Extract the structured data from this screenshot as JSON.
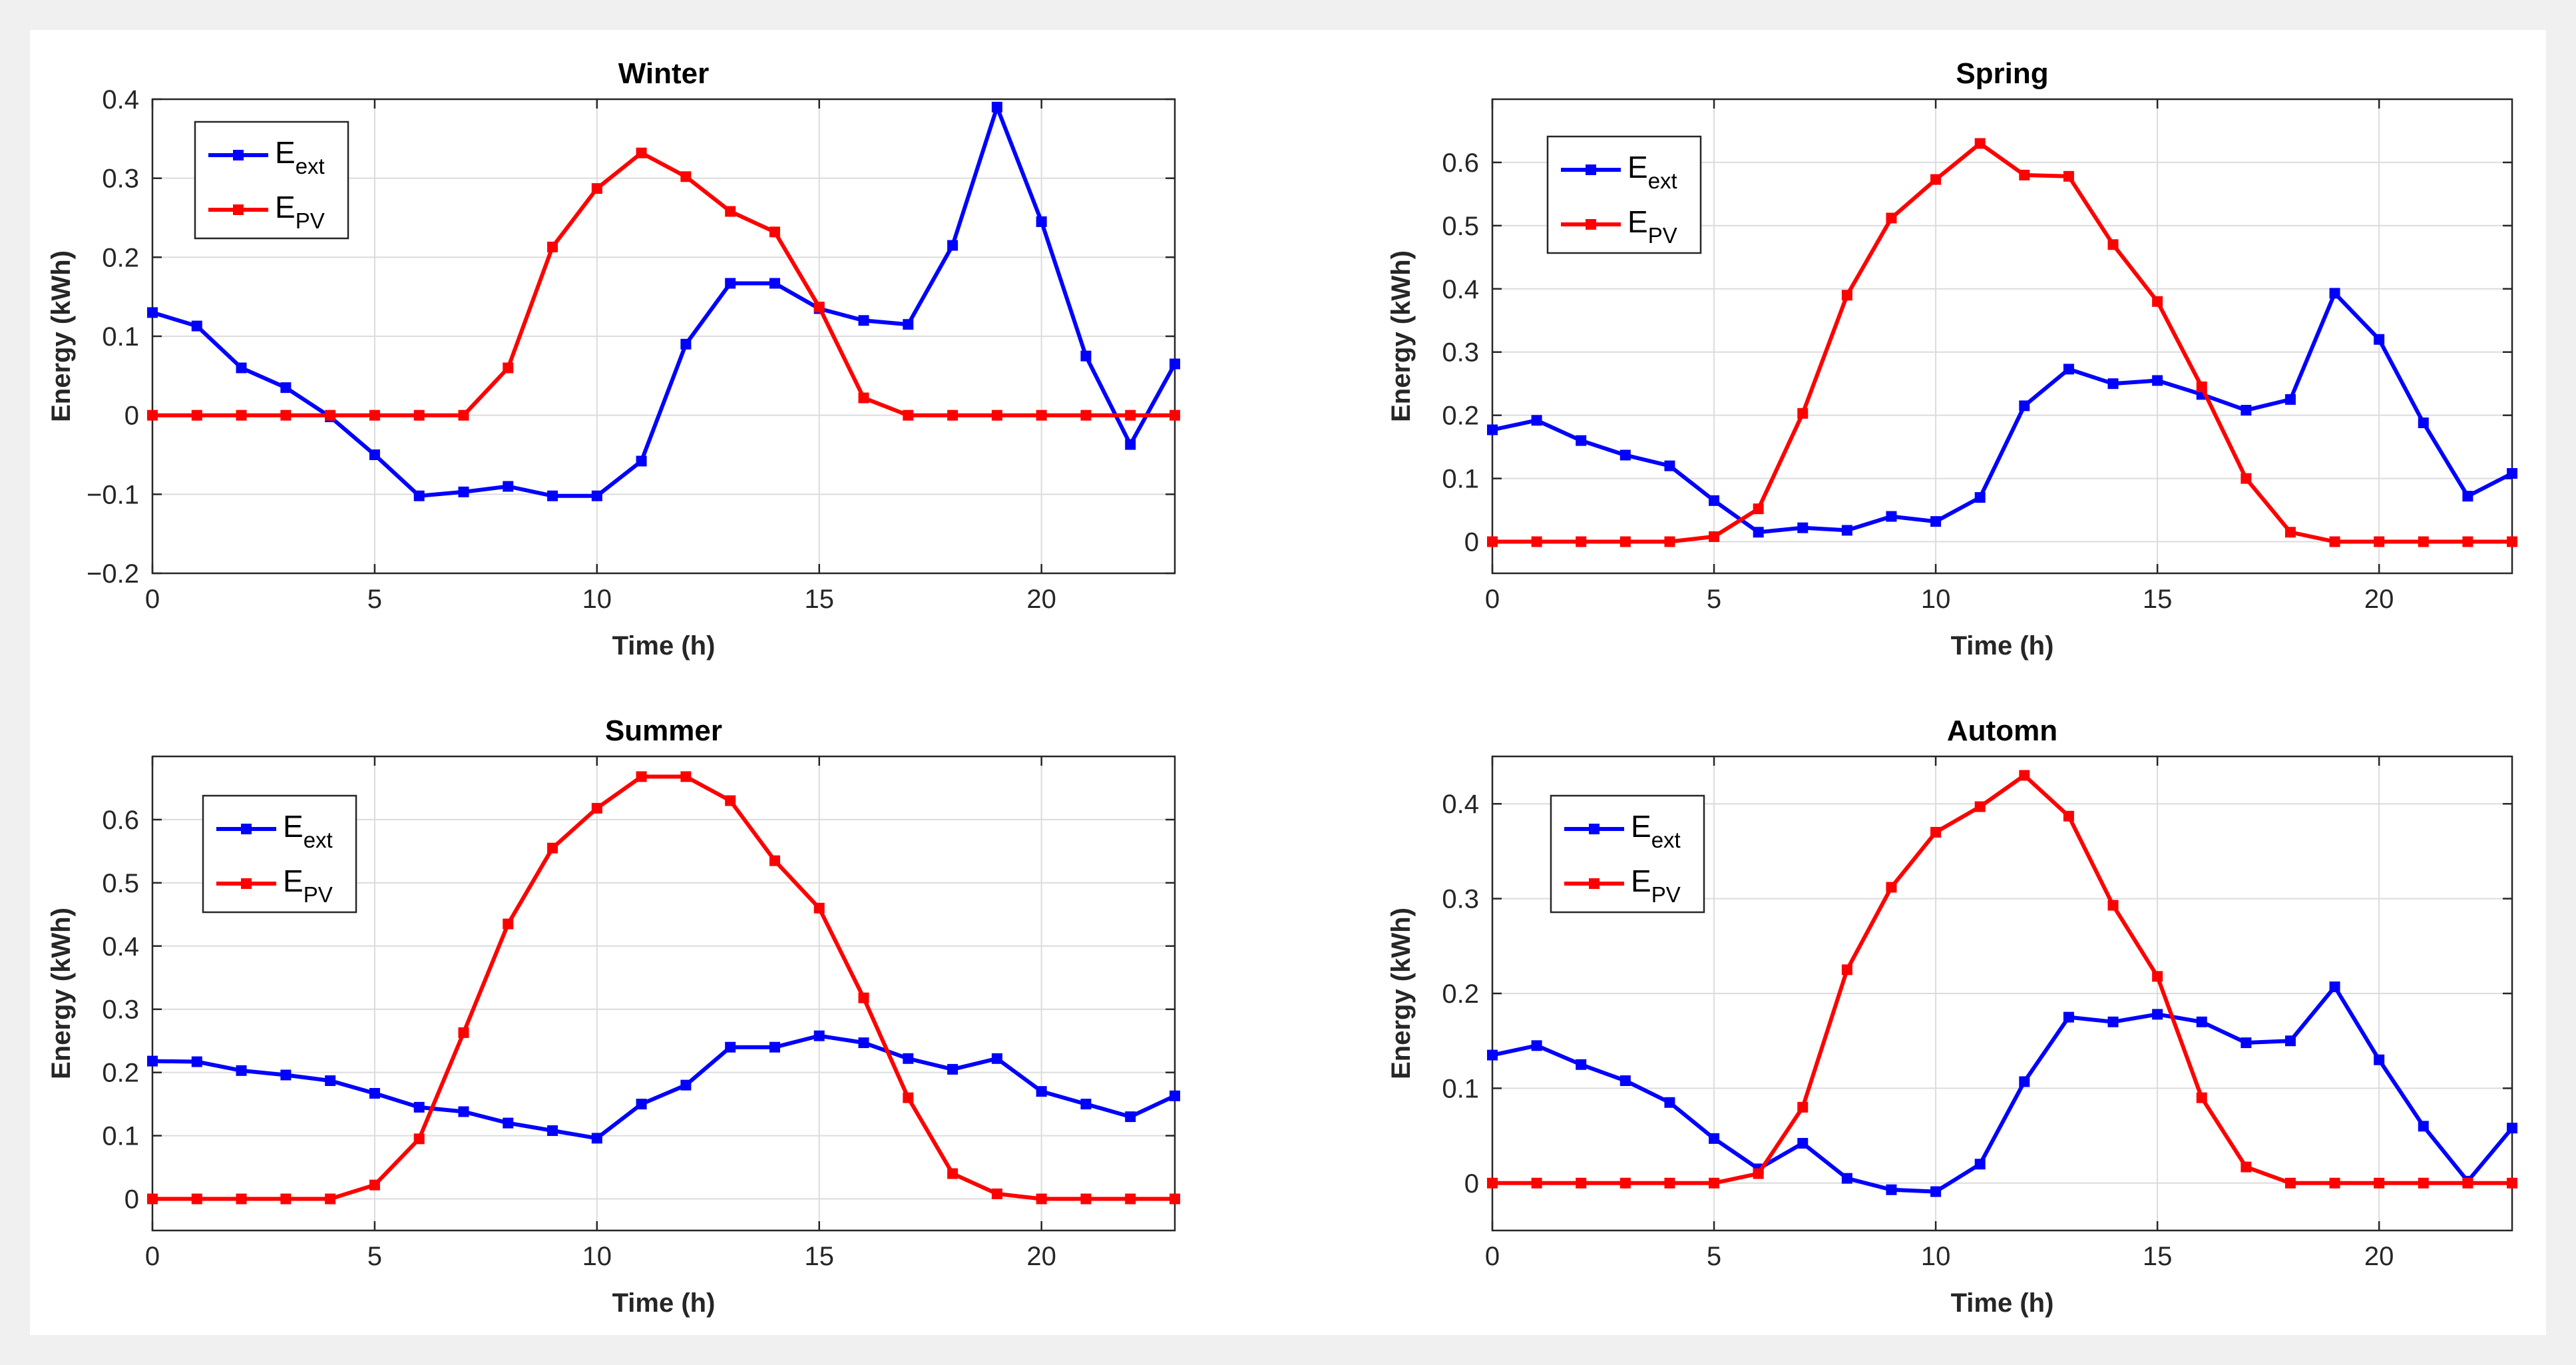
{
  "figure": {
    "background": "#f0f0f0"
  },
  "chart_data": [
    {
      "type": "line",
      "title": "Winter",
      "xlabel": "Time (h)",
      "ylabel": "Energy (kWh)",
      "xlim": [
        0,
        23
      ],
      "ylim": [
        -0.2,
        0.4
      ],
      "xticks": [
        0,
        5,
        10,
        15,
        20
      ],
      "xtick_labels": [
        "0",
        "5",
        "10",
        "15",
        "20"
      ],
      "yticks": [
        -0.2,
        -0.1,
        0,
        0.1,
        0.2,
        0.3,
        0.4
      ],
      "ytick_labels": [
        "−0.2",
        "−0.1",
        "0",
        "0.1",
        "0.2",
        "0.3",
        "0.4"
      ],
      "grid": true,
      "legend_position": "top-left",
      "x": [
        0,
        1,
        2,
        3,
        4,
        5,
        6,
        7,
        8,
        9,
        10,
        11,
        12,
        13,
        14,
        15,
        16,
        17,
        18,
        19,
        20,
        21,
        22,
        23
      ],
      "series": [
        {
          "name": "E_ext",
          "label_main": "E",
          "label_sub": "ext",
          "color": "#0000ff",
          "values": [
            0.13,
            0.113,
            0.06,
            0.035,
            -0.002,
            -0.05,
            -0.102,
            -0.097,
            -0.09,
            -0.102,
            -0.102,
            -0.058,
            0.09,
            0.167,
            0.167,
            0.135,
            0.12,
            0.115,
            0.215,
            0.39,
            0.245,
            0.075,
            -0.037,
            0.065
          ]
        },
        {
          "name": "E_PV",
          "label_main": "E",
          "label_sub": "PV",
          "color": "#ff0000",
          "values": [
            0,
            0,
            0,
            0,
            0,
            0,
            0,
            0,
            0.06,
            0.213,
            0.287,
            0.332,
            0.302,
            0.258,
            0.232,
            0.137,
            0.022,
            0,
            0,
            0,
            0,
            0,
            0,
            0
          ]
        }
      ]
    },
    {
      "type": "line",
      "title": "Spring",
      "xlabel": "Time (h)",
      "ylabel": "Energy (kWh)",
      "xlim": [
        0,
        23
      ],
      "ylim": [
        -0.05,
        0.7
      ],
      "xticks": [
        0,
        5,
        10,
        15,
        20
      ],
      "xtick_labels": [
        "0",
        "5",
        "10",
        "15",
        "20"
      ],
      "yticks": [
        0,
        0.1,
        0.2,
        0.3,
        0.4,
        0.5,
        0.6
      ],
      "ytick_labels": [
        "0",
        "0.1",
        "0.2",
        "0.3",
        "0.4",
        "0.5",
        "0.6"
      ],
      "grid": true,
      "legend_position": "top-left",
      "x": [
        0,
        1,
        2,
        3,
        4,
        5,
        6,
        7,
        8,
        9,
        10,
        11,
        12,
        13,
        14,
        15,
        16,
        17,
        18,
        19,
        20,
        21,
        22,
        23
      ],
      "series": [
        {
          "name": "E_ext",
          "label_main": "E",
          "label_sub": "ext",
          "color": "#0000ff",
          "values": [
            0.177,
            0.192,
            0.16,
            0.137,
            0.12,
            0.065,
            0.015,
            0.022,
            0.018,
            0.04,
            0.032,
            0.07,
            0.215,
            0.273,
            0.25,
            0.255,
            0.233,
            0.208,
            0.225,
            0.393,
            0.32,
            0.188,
            0.072,
            0.108
          ]
        },
        {
          "name": "E_PV",
          "label_main": "E",
          "label_sub": "PV",
          "color": "#ff0000",
          "values": [
            0,
            0,
            0,
            0,
            0,
            0.008,
            0.052,
            0.203,
            0.39,
            0.512,
            0.573,
            0.63,
            0.58,
            0.578,
            0.47,
            0.38,
            0.245,
            0.1,
            0.015,
            0,
            0,
            0,
            0,
            0
          ]
        }
      ]
    },
    {
      "type": "line",
      "title": "Summer",
      "xlabel": "Time (h)",
      "ylabel": "Energy (kWh)",
      "xlim": [
        0,
        23
      ],
      "ylim": [
        -0.05,
        0.7
      ],
      "xticks": [
        0,
        5,
        10,
        15,
        20
      ],
      "xtick_labels": [
        "0",
        "5",
        "10",
        "15",
        "20"
      ],
      "yticks": [
        0,
        0.1,
        0.2,
        0.3,
        0.4,
        0.5,
        0.6
      ],
      "ytick_labels": [
        "0",
        "0.1",
        "0.2",
        "0.3",
        "0.4",
        "0.5",
        "0.6"
      ],
      "grid": true,
      "legend_position": "top-left",
      "x": [
        0,
        1,
        2,
        3,
        4,
        5,
        6,
        7,
        8,
        9,
        10,
        11,
        12,
        13,
        14,
        15,
        16,
        17,
        18,
        19,
        20,
        21,
        22,
        23
      ],
      "series": [
        {
          "name": "E_ext",
          "label_main": "E",
          "label_sub": "ext",
          "color": "#0000ff",
          "values": [
            0.218,
            0.217,
            0.203,
            0.196,
            0.187,
            0.167,
            0.145,
            0.138,
            0.12,
            0.108,
            0.096,
            0.15,
            0.18,
            0.24,
            0.24,
            0.258,
            0.247,
            0.222,
            0.205,
            0.222,
            0.17,
            0.15,
            0.13,
            0.163
          ]
        },
        {
          "name": "E_PV",
          "label_main": "E",
          "label_sub": "PV",
          "color": "#ff0000",
          "values": [
            0,
            0,
            0,
            0,
            0,
            0.022,
            0.095,
            0.263,
            0.435,
            0.555,
            0.618,
            0.668,
            0.668,
            0.63,
            0.535,
            0.46,
            0.318,
            0.16,
            0.04,
            0.008,
            0,
            0,
            0,
            0
          ]
        }
      ]
    },
    {
      "type": "line",
      "title": "Automn",
      "xlabel": "Time (h)",
      "ylabel": "Energy (kWh)",
      "xlim": [
        0,
        23
      ],
      "ylim": [
        -0.05,
        0.45
      ],
      "xticks": [
        0,
        5,
        10,
        15,
        20
      ],
      "xtick_labels": [
        "0",
        "5",
        "10",
        "15",
        "20"
      ],
      "yticks": [
        0,
        0.1,
        0.2,
        0.3,
        0.4
      ],
      "ytick_labels": [
        "0",
        "0.1",
        "0.2",
        "0.3",
        "0.4"
      ],
      "grid": true,
      "legend_position": "top-left",
      "x": [
        0,
        1,
        2,
        3,
        4,
        5,
        6,
        7,
        8,
        9,
        10,
        11,
        12,
        13,
        14,
        15,
        16,
        17,
        18,
        19,
        20,
        21,
        22,
        23
      ],
      "series": [
        {
          "name": "E_ext",
          "label_main": "E",
          "label_sub": "ext",
          "color": "#0000ff",
          "values": [
            0.135,
            0.145,
            0.125,
            0.108,
            0.085,
            0.047,
            0.015,
            0.042,
            0.005,
            -0.007,
            -0.009,
            0.02,
            0.107,
            0.175,
            0.17,
            0.178,
            0.17,
            0.148,
            0.15,
            0.207,
            0.13,
            0.06,
            0.002,
            0.058
          ]
        },
        {
          "name": "E_PV",
          "label_main": "E",
          "label_sub": "PV",
          "color": "#ff0000",
          "values": [
            0,
            0,
            0,
            0,
            0,
            0,
            0.01,
            0.08,
            0.225,
            0.312,
            0.37,
            0.397,
            0.43,
            0.387,
            0.293,
            0.218,
            0.09,
            0.017,
            0,
            0,
            0,
            0,
            0,
            0
          ]
        }
      ]
    }
  ]
}
